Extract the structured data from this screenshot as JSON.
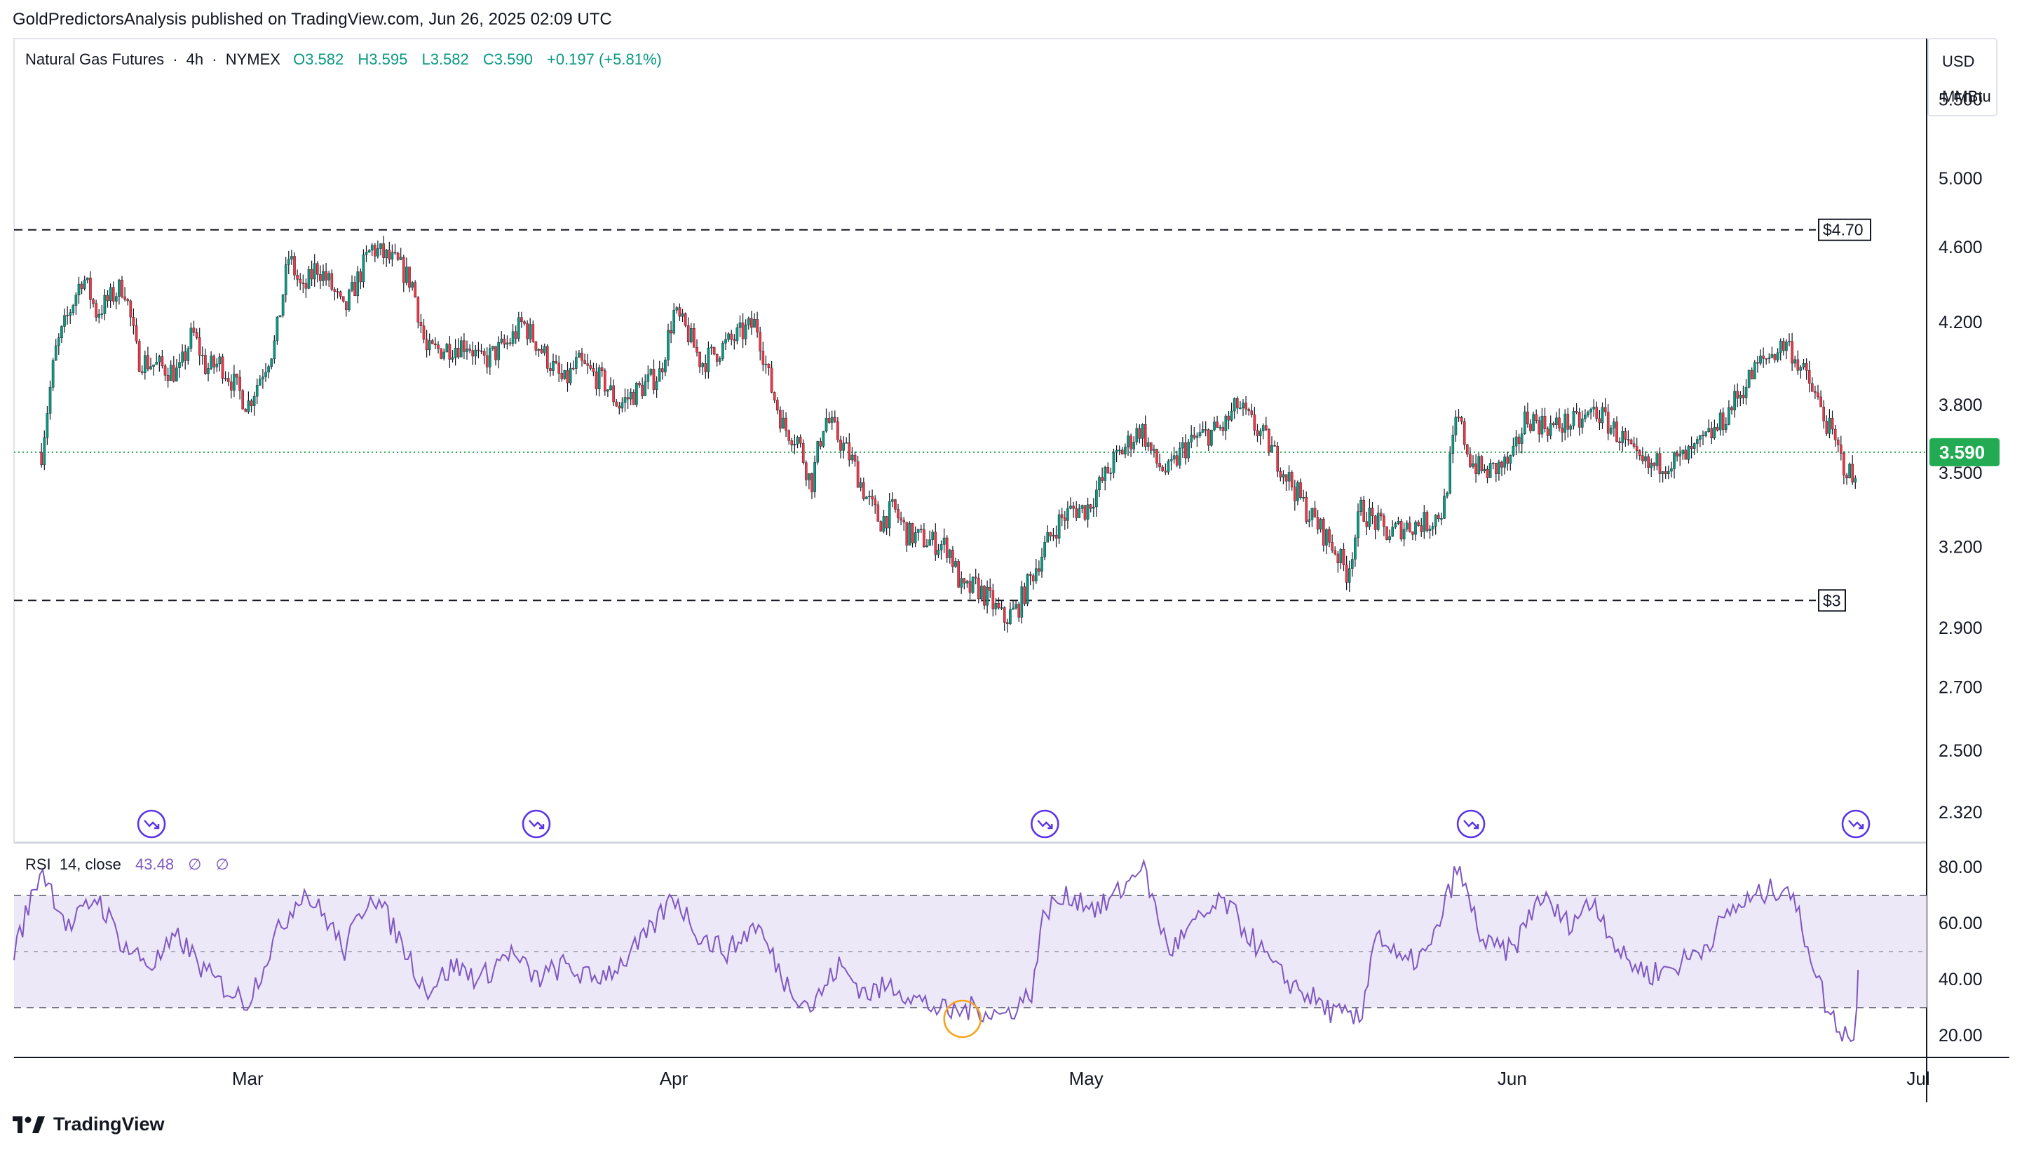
{
  "header": {
    "published_by": "GoldPredictorsAnalysis published on TradingView.com, Jun 26, 2025 02:09 UTC"
  },
  "legend": {
    "symbol": "Natural Gas Futures",
    "sep1": "·",
    "interval": "4h",
    "sep2": "·",
    "exchange": "NYMEX",
    "open": "O3.582",
    "high": "H3.595",
    "low": "L3.582",
    "close": "C3.590",
    "change": "+0.197 (+5.81%)"
  },
  "price_axis": {
    "currency": "USD",
    "unit": "MMBtu",
    "current_price_label": "3.590"
  },
  "annotations": {
    "upper_line_label": "$4.70",
    "lower_line_label": "$3"
  },
  "rsi": {
    "label": "RSI",
    "params": "14, close",
    "value": "43.48",
    "extra1": "∅",
    "extra2": "∅"
  },
  "footer": {
    "brand": "TradingView"
  },
  "colors": {
    "up": "#089981",
    "down": "#f23645",
    "wick": "#131722",
    "rsi_line": "#7e57c2",
    "rsi_band": "#ede8f8",
    "price_badge": "#22ab52",
    "event_icon": "#5b35e6",
    "highlight_circle": "#f7a21b",
    "current_price_line": "#22ab52"
  },
  "chart_data": [
    {
      "type": "candlestick",
      "title": "Natural Gas Futures · 4h · NYMEX",
      "x_axis": {
        "tick_labels": [
          "Mar",
          "Apr",
          "May",
          "Jun",
          "Jul"
        ],
        "range": [
          "2025-02-12",
          "2025-07-01"
        ]
      },
      "y_axis": {
        "scale": "log",
        "tick_labels": [
          "5.500",
          "5.000",
          "4.600",
          "4.200",
          "3.800",
          "3.500",
          "3.200",
          "2.900",
          "2.700",
          "2.500",
          "2.320"
        ],
        "ticks": [
          5.5,
          5.0,
          4.6,
          4.2,
          3.8,
          3.5,
          3.2,
          2.9,
          2.7,
          2.5,
          2.32
        ],
        "range": [
          2.25,
          5.9
        ]
      },
      "horizontal_lines": [
        {
          "price": 4.7,
          "style": "dashed",
          "label": "$4.70"
        },
        {
          "price": 3.0,
          "style": "dashed",
          "label": "$3"
        },
        {
          "price": 3.59,
          "style": "dotted",
          "label": "3.590"
        }
      ],
      "close_path": [
        [
          "2025-02-14",
          3.59
        ],
        [
          "2025-02-15",
          4.05
        ],
        [
          "2025-02-17",
          4.45
        ],
        [
          "2025-02-18",
          4.25
        ],
        [
          "2025-02-20",
          4.4
        ],
        [
          "2025-02-21",
          4.02
        ],
        [
          "2025-02-24",
          3.95
        ],
        [
          "2025-02-25",
          4.15
        ],
        [
          "2025-02-26",
          3.97
        ],
        [
          "2025-02-27",
          4.0
        ],
        [
          "2025-02-28",
          3.9
        ],
        [
          "2025-03-01",
          3.8
        ],
        [
          "2025-03-03",
          4.1
        ],
        [
          "2025-03-04",
          4.55
        ],
        [
          "2025-03-05",
          4.35
        ],
        [
          "2025-03-06",
          4.5
        ],
        [
          "2025-03-07",
          4.4
        ],
        [
          "2025-03-08",
          4.25
        ],
        [
          "2025-03-10",
          4.6
        ],
        [
          "2025-03-11",
          4.55
        ],
        [
          "2025-03-12",
          4.5
        ],
        [
          "2025-03-13",
          4.4
        ],
        [
          "2025-03-14",
          4.05
        ],
        [
          "2025-03-17",
          4.1
        ],
        [
          "2025-03-18",
          4.0
        ],
        [
          "2025-03-20",
          4.1
        ],
        [
          "2025-03-21",
          4.2
        ],
        [
          "2025-03-22",
          4.1
        ],
        [
          "2025-03-24",
          3.9
        ],
        [
          "2025-03-25",
          4.0
        ],
        [
          "2025-03-27",
          3.9
        ],
        [
          "2025-03-28",
          3.8
        ],
        [
          "2025-03-31",
          3.95
        ],
        [
          "2025-04-01",
          4.25
        ],
        [
          "2025-04-02",
          4.15
        ],
        [
          "2025-04-03",
          4.0
        ],
        [
          "2025-04-04",
          4.05
        ],
        [
          "2025-04-07",
          4.2
        ],
        [
          "2025-04-08",
          3.9
        ],
        [
          "2025-04-09",
          3.7
        ],
        [
          "2025-04-10",
          3.65
        ],
        [
          "2025-04-11",
          3.45
        ],
        [
          "2025-04-12",
          3.75
        ],
        [
          "2025-04-14",
          3.55
        ],
        [
          "2025-04-15",
          3.4
        ],
        [
          "2025-04-16",
          3.3
        ],
        [
          "2025-04-17",
          3.35
        ],
        [
          "2025-04-18",
          3.25
        ],
        [
          "2025-04-21",
          3.2
        ],
        [
          "2025-04-22",
          3.03
        ],
        [
          "2025-04-23",
          3.05
        ],
        [
          "2025-04-24",
          3.0
        ],
        [
          "2025-04-25",
          2.93
        ],
        [
          "2025-04-26",
          2.97
        ],
        [
          "2025-04-28",
          3.2
        ],
        [
          "2025-04-29",
          3.3
        ],
        [
          "2025-04-30",
          3.35
        ],
        [
          "2025-05-01",
          3.35
        ],
        [
          "2025-05-02",
          3.45
        ],
        [
          "2025-05-03",
          3.55
        ],
        [
          "2025-05-05",
          3.7
        ],
        [
          "2025-05-06",
          3.55
        ],
        [
          "2025-05-07",
          3.5
        ],
        [
          "2025-05-08",
          3.6
        ],
        [
          "2025-05-09",
          3.65
        ],
        [
          "2025-05-11",
          3.7
        ],
        [
          "2025-05-12",
          3.8
        ],
        [
          "2025-05-13",
          3.72
        ],
        [
          "2025-05-14",
          3.65
        ],
        [
          "2025-05-15",
          3.55
        ],
        [
          "2025-05-16",
          3.45
        ],
        [
          "2025-05-17",
          3.35
        ],
        [
          "2025-05-19",
          3.2
        ],
        [
          "2025-05-20",
          3.1
        ],
        [
          "2025-05-21",
          3.35
        ],
        [
          "2025-05-22",
          3.3
        ],
        [
          "2025-05-23",
          3.25
        ],
        [
          "2025-05-24",
          3.28
        ],
        [
          "2025-05-26",
          3.3
        ],
        [
          "2025-05-27",
          3.35
        ],
        [
          "2025-05-28",
          3.75
        ],
        [
          "2025-05-29",
          3.55
        ],
        [
          "2025-05-30",
          3.5
        ],
        [
          "2025-06-01",
          3.55
        ],
        [
          "2025-06-02",
          3.75
        ],
        [
          "2025-06-03",
          3.72
        ],
        [
          "2025-06-04",
          3.7
        ],
        [
          "2025-06-05",
          3.72
        ],
        [
          "2025-06-06",
          3.72
        ],
        [
          "2025-06-07",
          3.78
        ],
        [
          "2025-06-09",
          3.65
        ],
        [
          "2025-06-10",
          3.55
        ],
        [
          "2025-06-11",
          3.52
        ],
        [
          "2025-06-12",
          3.55
        ],
        [
          "2025-06-13",
          3.55
        ],
        [
          "2025-06-14",
          3.58
        ],
        [
          "2025-06-16",
          3.7
        ],
        [
          "2025-06-17",
          3.8
        ],
        [
          "2025-06-18",
          3.9
        ],
        [
          "2025-06-19",
          4.0
        ],
        [
          "2025-06-20",
          4.05
        ],
        [
          "2025-06-21",
          4.1
        ],
        [
          "2025-06-23",
          3.85
        ],
        [
          "2025-06-24",
          3.7
        ],
        [
          "2025-06-25",
          3.55
        ],
        [
          "2025-06-26",
          3.45
        ],
        [
          "2025-06-26T04:00",
          3.59
        ]
      ],
      "current_price": 3.59
    },
    {
      "type": "line",
      "title": "RSI 14, close",
      "y_axis": {
        "tick_labels": [
          "80.00",
          "60.00",
          "40.00",
          "20.00"
        ],
        "ticks": [
          80,
          60,
          40,
          20
        ],
        "range": [
          13,
          88
        ],
        "band": [
          30,
          70
        ],
        "midline": 50
      },
      "last_value": 43.48,
      "series": [
        {
          "values": [
            [
              "2025-02-12",
              50
            ],
            [
              "2025-02-14",
              80
            ],
            [
              "2025-02-16",
              58
            ],
            [
              "2025-02-18",
              70
            ],
            [
              "2025-02-20",
              52
            ],
            [
              "2025-02-22",
              45
            ],
            [
              "2025-02-24",
              55
            ],
            [
              "2025-02-26",
              42
            ],
            [
              "2025-02-28",
              35
            ],
            [
              "2025-03-01",
              32
            ],
            [
              "2025-03-03",
              55
            ],
            [
              "2025-03-05",
              72
            ],
            [
              "2025-03-07",
              60
            ],
            [
              "2025-03-08",
              50
            ],
            [
              "2025-03-10",
              72
            ],
            [
              "2025-03-12",
              55
            ],
            [
              "2025-03-14",
              36
            ],
            [
              "2025-03-16",
              45
            ],
            [
              "2025-03-18",
              40
            ],
            [
              "2025-03-20",
              50
            ],
            [
              "2025-03-22",
              40
            ],
            [
              "2025-03-24",
              45
            ],
            [
              "2025-03-26",
              40
            ],
            [
              "2025-03-28",
              45
            ],
            [
              "2025-03-30",
              55
            ],
            [
              "2025-04-01",
              70
            ],
            [
              "2025-04-03",
              55
            ],
            [
              "2025-04-05",
              50
            ],
            [
              "2025-04-07",
              60
            ],
            [
              "2025-04-09",
              40
            ],
            [
              "2025-04-11",
              30
            ],
            [
              "2025-04-13",
              45
            ],
            [
              "2025-04-15",
              35
            ],
            [
              "2025-04-17",
              38
            ],
            [
              "2025-04-19",
              32
            ],
            [
              "2025-04-21",
              28
            ],
            [
              "2025-04-23",
              30
            ],
            [
              "2025-04-25",
              27
            ],
            [
              "2025-04-27",
              35
            ],
            [
              "2025-04-28",
              65
            ],
            [
              "2025-04-30",
              70
            ],
            [
              "2025-05-02",
              65
            ],
            [
              "2025-05-04",
              74
            ],
            [
              "2025-05-05",
              82
            ],
            [
              "2025-05-07",
              50
            ],
            [
              "2025-05-09",
              60
            ],
            [
              "2025-05-11",
              68
            ],
            [
              "2025-05-13",
              55
            ],
            [
              "2025-05-15",
              42
            ],
            [
              "2025-05-17",
              35
            ],
            [
              "2025-05-19",
              28
            ],
            [
              "2025-05-21",
              25
            ],
            [
              "2025-05-22",
              58
            ],
            [
              "2025-05-24",
              45
            ],
            [
              "2025-05-26",
              50
            ],
            [
              "2025-05-28",
              80
            ],
            [
              "2025-05-30",
              52
            ],
            [
              "2025-06-01",
              50
            ],
            [
              "2025-06-03",
              70
            ],
            [
              "2025-06-05",
              60
            ],
            [
              "2025-06-07",
              68
            ],
            [
              "2025-06-09",
              48
            ],
            [
              "2025-06-11",
              42
            ],
            [
              "2025-06-13",
              45
            ],
            [
              "2025-06-15",
              52
            ],
            [
              "2025-06-17",
              65
            ],
            [
              "2025-06-19",
              70
            ],
            [
              "2025-06-21",
              74
            ],
            [
              "2025-06-22",
              60
            ],
            [
              "2025-06-23",
              45
            ],
            [
              "2025-06-24",
              28
            ],
            [
              "2025-06-25",
              22
            ],
            [
              "2025-06-26",
              19
            ],
            [
              "2025-06-26T04:00",
              43.48
            ]
          ]
        }
      ]
    }
  ]
}
